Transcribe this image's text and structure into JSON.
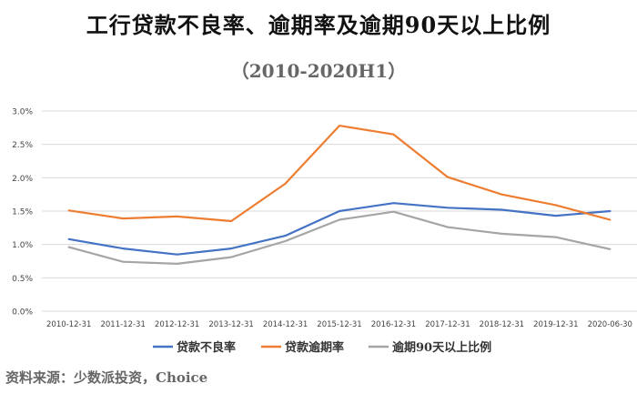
{
  "chart_data": {
    "type": "line",
    "title": "工行贷款不良率、逾期率及逾期90天以上比例",
    "subtitle": "（2010-2020H1）",
    "categories": [
      "2010-12-31",
      "2011-12-31",
      "2012-12-31",
      "2013-12-31",
      "2014-12-31",
      "2015-12-31",
      "2016-12-31",
      "2017-12-31",
      "2018-12-31",
      "2019-12-31",
      "2020-06-30"
    ],
    "ylim": [
      0,
      3.0
    ],
    "yticks": [
      "0.0%",
      "0.5%",
      "1.0%",
      "1.5%",
      "2.0%",
      "2.5%",
      "3.0%"
    ],
    "grid": true,
    "legend_position": "bottom",
    "series": [
      {
        "name": "贷款不良率",
        "color": "#4472C4",
        "values": [
          1.08,
          0.94,
          0.85,
          0.94,
          1.13,
          1.5,
          1.62,
          1.55,
          1.52,
          1.43,
          1.5
        ]
      },
      {
        "name": "贷款逾期率",
        "color": "#ED7D31",
        "values": [
          1.51,
          1.39,
          1.42,
          1.35,
          1.91,
          2.78,
          2.65,
          2.01,
          1.75,
          1.59,
          1.37
        ]
      },
      {
        "name": "逾期90天以上比例",
        "color": "#A5A5A5",
        "values": [
          0.96,
          0.74,
          0.71,
          0.81,
          1.05,
          1.37,
          1.49,
          1.26,
          1.16,
          1.11,
          0.93
        ]
      }
    ]
  },
  "source": "资料来源：少数派投资，Choice"
}
